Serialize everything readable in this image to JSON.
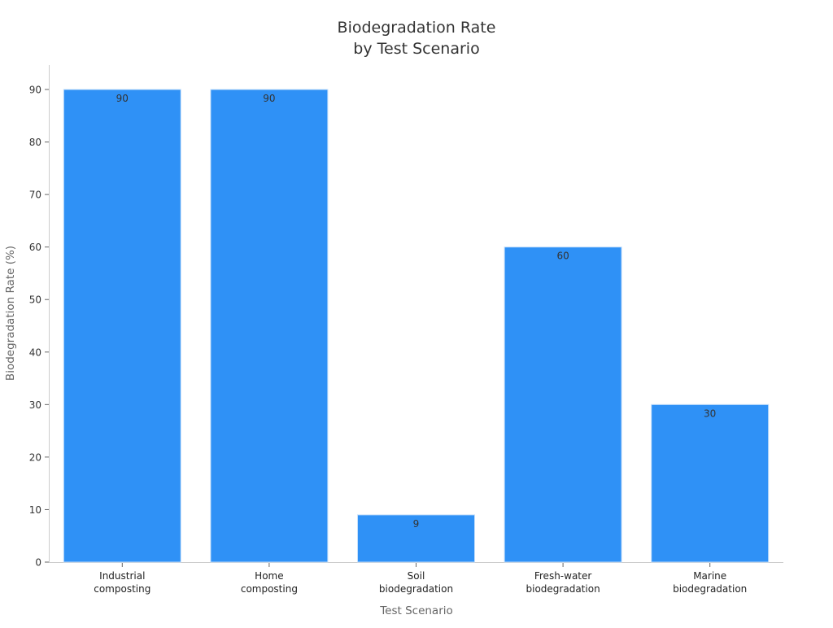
{
  "chart_data": {
    "type": "bar",
    "title": [
      "Biodegradation Rate",
      "by Test Scenario"
    ],
    "xlabel": "Test Scenario",
    "ylabel": "Biodegradation Rate (%)",
    "categories": [
      [
        "Industrial",
        "composting"
      ],
      [
        "Home",
        "composting"
      ],
      [
        "Soil",
        "biodegradation"
      ],
      [
        "Fresh-water",
        "biodegradation"
      ],
      [
        "Marine",
        "biodegradation"
      ]
    ],
    "values": [
      90,
      90,
      9,
      60,
      30
    ],
    "data_labels": [
      "90",
      "90",
      "9",
      "60",
      "30"
    ],
    "yticks": [
      0,
      10,
      20,
      30,
      40,
      50,
      60,
      70,
      80,
      90
    ],
    "ylim": [
      0,
      90
    ],
    "grid": false,
    "bar_color": "#2f91f6"
  }
}
